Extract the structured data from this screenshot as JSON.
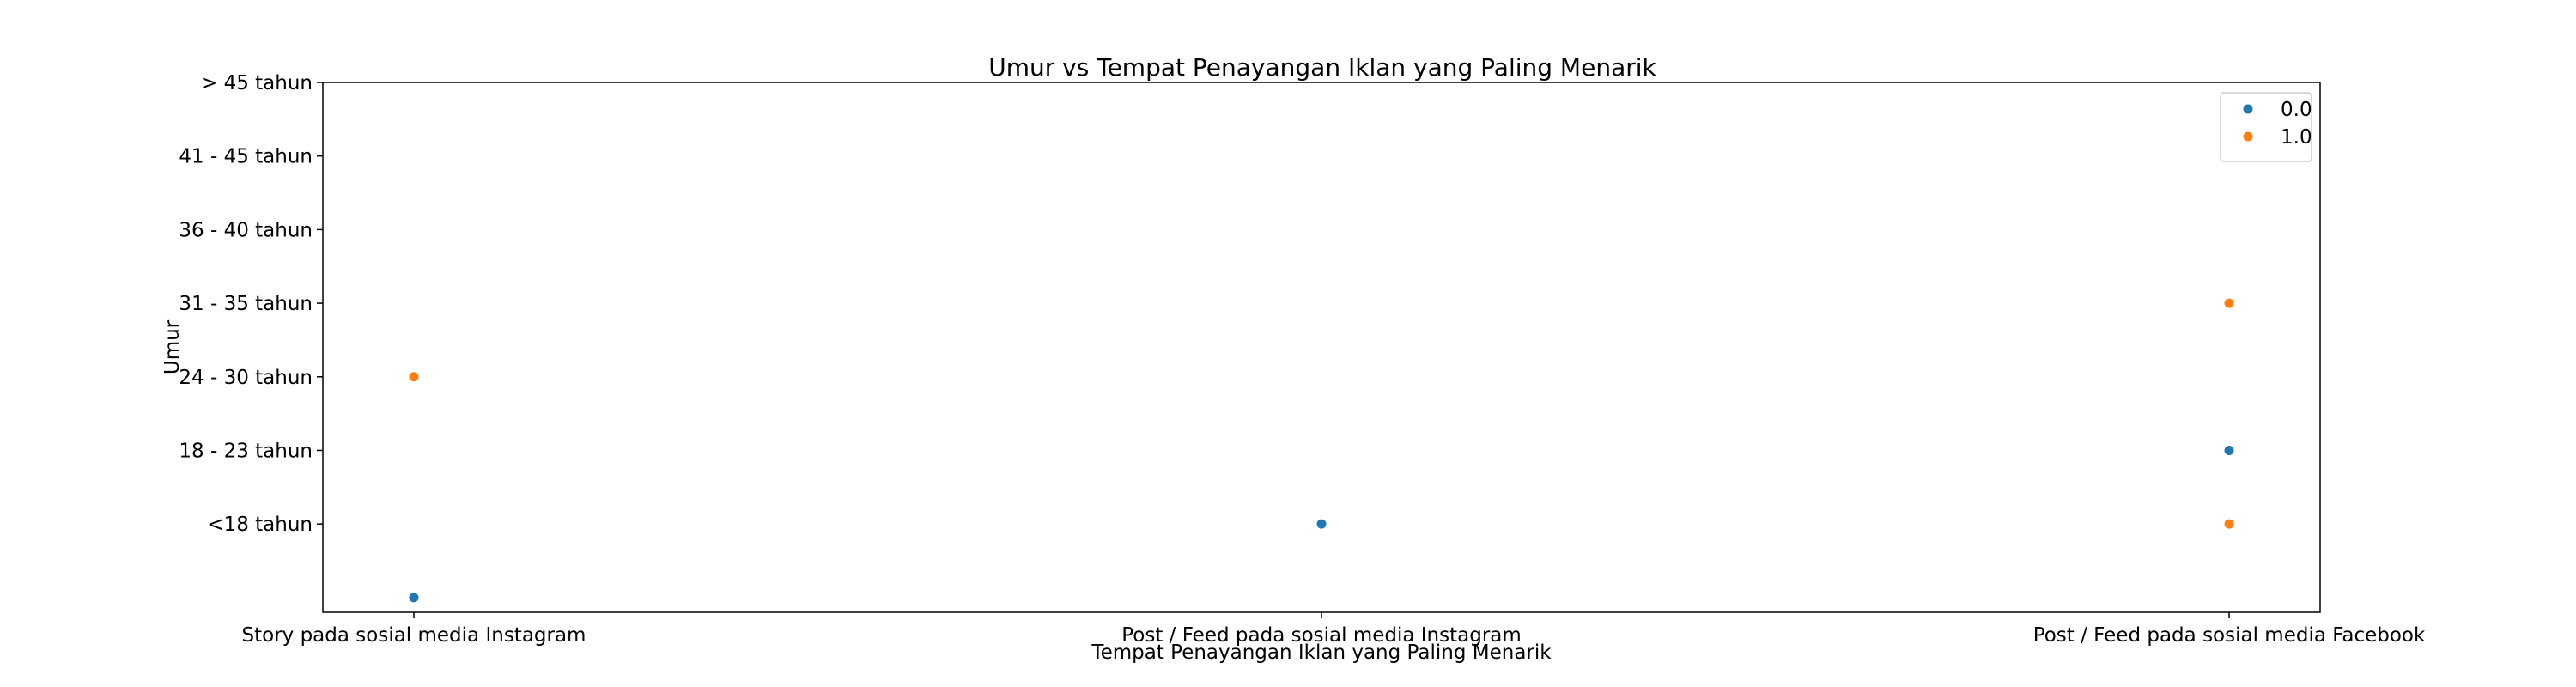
{
  "chart_data": {
    "type": "scatter",
    "title": "Umur vs Tempat Penayangan Iklan yang Paling Menarik",
    "xlabel": "Tempat Penayangan Iklan yang Paling Menarik",
    "ylabel": "Umur",
    "x_categories": [
      "Story pada sosial media Instagram",
      "Post / Feed pada sosial media Instagram",
      "Post / Feed pada sosial media Facebook"
    ],
    "y_tick_labels": [
      "<18 tahun",
      "18 - 23 tahun",
      "24 - 30 tahun",
      "31 - 35 tahun",
      "36 - 40 tahun",
      "41 - 45 tahun",
      "> 45 tahun"
    ],
    "y_tick_positions": [
      1,
      2,
      3,
      4,
      5,
      6,
      7
    ],
    "ylim": [
      -0.2,
      7
    ],
    "grid": false,
    "legend_position": "top-right",
    "series": [
      {
        "name": "0.0",
        "color": "#1f77b4",
        "points": [
          {
            "x": "Story pada sosial media Instagram",
            "y": 0
          },
          {
            "x": "Post / Feed pada sosial media Instagram",
            "y": 1
          },
          {
            "x": "Post / Feed pada sosial media Facebook",
            "y": 2
          }
        ]
      },
      {
        "name": "1.0",
        "color": "#ff7f0e",
        "points": [
          {
            "x": "Story pada sosial media Instagram",
            "y": 3
          },
          {
            "x": "Post / Feed pada sosial media Facebook",
            "y": 4
          },
          {
            "x": "Post / Feed pada sosial media Facebook",
            "y": 1
          }
        ]
      }
    ]
  }
}
